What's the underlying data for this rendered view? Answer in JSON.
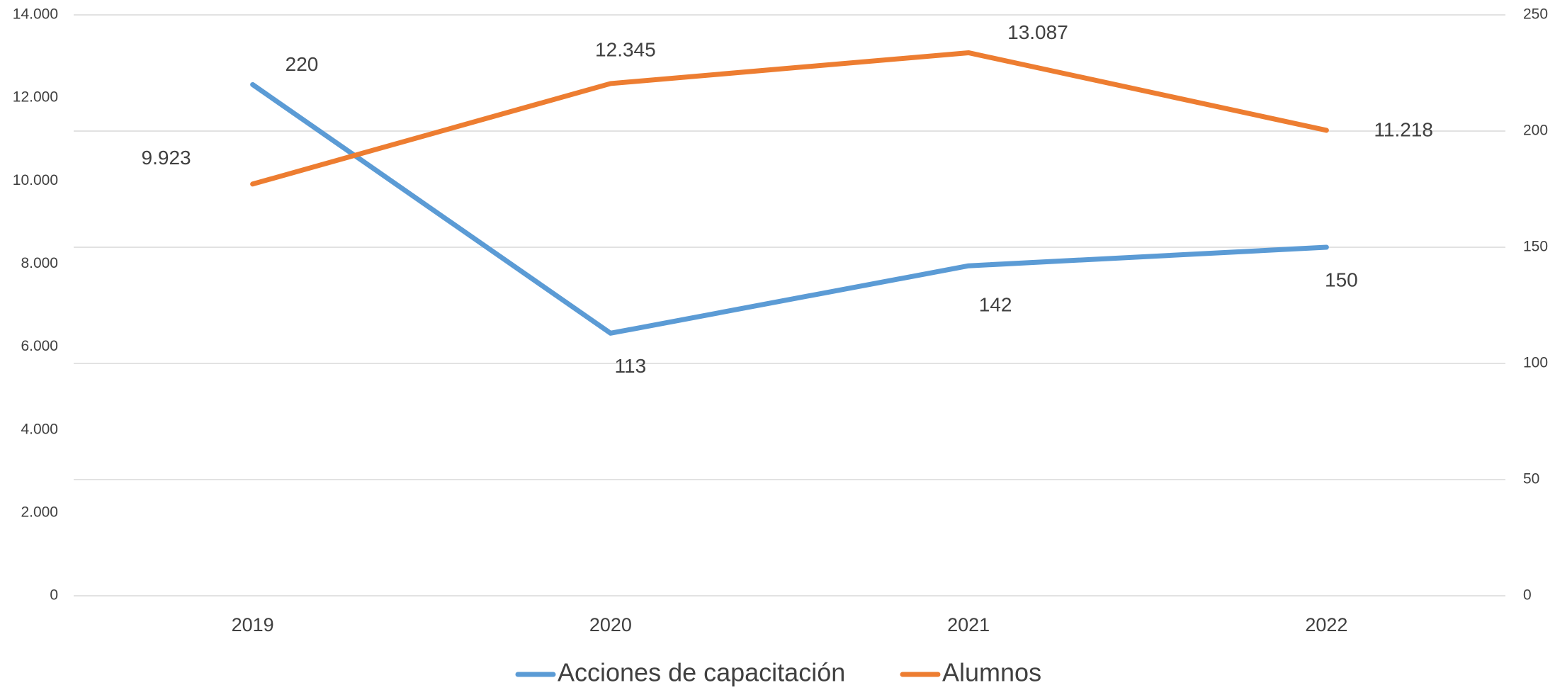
{
  "chart_data": {
    "type": "line",
    "categories": [
      "2019",
      "2020",
      "2021",
      "2022"
    ],
    "series": [
      {
        "name": "Acciones de capacitación",
        "color": "#5b9bd5",
        "axis": "y2",
        "values": [
          220,
          113,
          142,
          150
        ]
      },
      {
        "name": "Alumnos",
        "color": "#ed7d31",
        "values": [
          9923,
          12345,
          13087,
          11218
        ],
        "value_labels": [
          "9.923",
          "12.345",
          "13.087",
          "11.218"
        ]
      }
    ],
    "ylim": [
      0,
      14000
    ],
    "yticks": [
      0,
      {
        "value": 2000,
        "label": "2.000"
      },
      {
        "value": 4000,
        "label": "4.000"
      },
      {
        "value": 6000,
        "label": "6.000"
      },
      {
        "value": 8000,
        "label": "8.000"
      },
      {
        "value": 10000,
        "label": "10.000"
      },
      {
        "value": 12000,
        "label": "12.000"
      },
      {
        "value": 14000,
        "label": "14.000"
      }
    ],
    "y2lim": [
      0,
      250
    ],
    "y2ticks": [
      0,
      50,
      100,
      150,
      200,
      250
    ],
    "grid": true,
    "legend": "bottom"
  }
}
